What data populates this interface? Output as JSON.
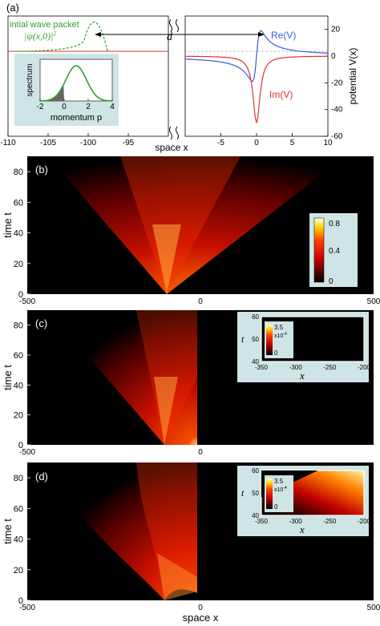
{
  "chart_data": [
    {
      "type": "line",
      "panel_label": "(a)",
      "xlabel": "space x",
      "ylabel_right": "potential V(x)",
      "left_axis": {
        "xlim": [
          -110,
          -90
        ],
        "ticks": [
          -110,
          -105,
          -100,
          -95
        ]
      },
      "right_axis": {
        "xlim": [
          -10,
          10
        ],
        "ticks": [
          -5,
          0,
          5,
          10
        ]
      },
      "ylim": [
        -60,
        30
      ],
      "yticks": [
        20,
        0,
        -20,
        -40,
        -60
      ],
      "series": [
        {
          "name": "Re(V)",
          "color": "#3b5bdb"
        },
        {
          "name": "Im(V)",
          "color": "#e03131"
        }
      ],
      "annotations": {
        "wave_packet": "intial wave packet",
        "psi": "|ψ(x,0)|",
        "psi_sup": "2",
        "distance": "d"
      },
      "inset": {
        "ylabel": "spectrum",
        "xlabel": "momentum p",
        "xticks": [
          -2,
          0,
          2,
          4
        ],
        "xlim": [
          -2,
          4
        ],
        "peak": 1.0,
        "width": 0.85
      }
    },
    {
      "type": "heatmap",
      "panel_label": "(b)",
      "ylabel": "time t",
      "xticks": [
        -500,
        0,
        500
      ],
      "yticks": [
        0,
        20,
        40,
        60,
        80
      ],
      "xlim": [
        -500,
        500
      ],
      "ylim": [
        0,
        90
      ],
      "colorbar": {
        "ticks": [
          "0.8",
          "0.4",
          "0"
        ]
      }
    },
    {
      "type": "heatmap",
      "panel_label": "(c)",
      "ylabel": "time t",
      "xticks": [
        -500,
        0
      ],
      "yticks": [
        0,
        20,
        40,
        60,
        80
      ],
      "inset": {
        "xticks": [
          -350,
          -300,
          -250,
          -200
        ],
        "yticks": [
          40,
          50,
          60
        ],
        "xlabel": "x",
        "ylabel": "t",
        "colorbar": {
          "max": "3.5",
          "scale": "x10",
          "scale_exp": "-4",
          "min": "0"
        }
      }
    },
    {
      "type": "heatmap",
      "panel_label": "(d)",
      "ylabel": "time t",
      "xlabel": "space x",
      "xticks": [
        -500,
        0,
        500
      ],
      "yticks": [
        0,
        20,
        40,
        60,
        80
      ],
      "inset": {
        "xticks": [
          -350,
          -300,
          -250,
          -200
        ],
        "yticks": [
          40,
          50,
          60
        ],
        "xlabel": "x",
        "ylabel": "t",
        "colorbar": {
          "max": "3.5",
          "scale": "x10",
          "scale_exp": "-4",
          "min": "0"
        }
      }
    }
  ]
}
